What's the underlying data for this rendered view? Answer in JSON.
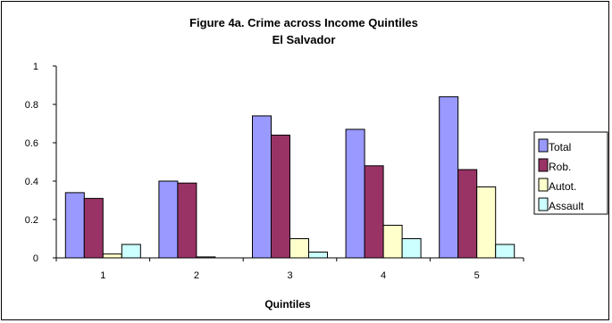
{
  "chart_data": {
    "type": "bar",
    "title": "Figure 4a. Crime across Income Quintiles",
    "subtitle": "El Salvador",
    "xlabel": "Quintiles",
    "ylabel": "",
    "categories": [
      "1",
      "2",
      "3",
      "4",
      "5"
    ],
    "ylim": [
      0,
      1
    ],
    "yticks": [
      "0",
      "0.2",
      "0.4",
      "0.6",
      "0.8",
      "1"
    ],
    "grid": false,
    "legend_position": "right",
    "series": [
      {
        "name": "Total",
        "color": "#9999ff",
        "values": [
          0.34,
          0.4,
          0.74,
          0.67,
          0.84
        ]
      },
      {
        "name": "Rob.",
        "color": "#993366",
        "values": [
          0.31,
          0.39,
          0.64,
          0.48,
          0.46
        ]
      },
      {
        "name": "Autot.",
        "color": "#ffffcc",
        "values": [
          0.02,
          0.005,
          0.1,
          0.17,
          0.37
        ]
      },
      {
        "name": "Assault",
        "color": "#ccffff",
        "values": [
          0.07,
          0.0,
          0.03,
          0.1,
          0.07
        ]
      }
    ]
  }
}
